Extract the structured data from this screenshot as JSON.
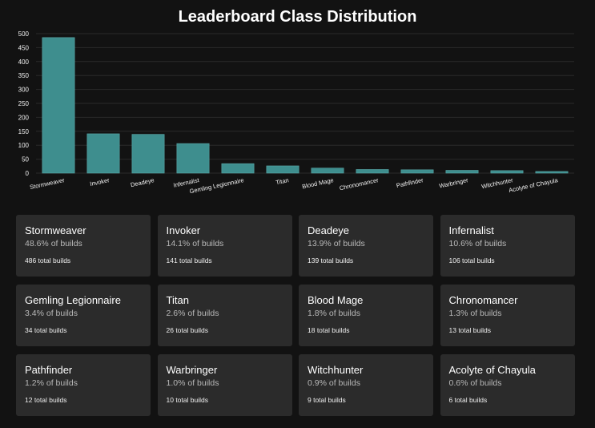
{
  "header": {
    "title": "Leaderboard Class Distribution"
  },
  "colors": {
    "background": "#121212",
    "bar": "#3e8e8e",
    "card": "#2b2b2b"
  },
  "chart_data": {
    "type": "bar",
    "title": "Leaderboard Class Distribution",
    "xlabel": "",
    "ylabel": "",
    "ylim": [
      0,
      500
    ],
    "yticks": [
      0,
      50,
      100,
      150,
      200,
      250,
      300,
      350,
      400,
      450,
      500
    ],
    "grid": true,
    "categories": [
      "Stormweaver",
      "Invoker",
      "Deadeye",
      "Infernalist",
      "Gemling Legionnaire",
      "Titan",
      "Blood Mage",
      "Chronomancer",
      "Pathfinder",
      "Warbringer",
      "Witchhunter",
      "Acolyte of Chayula"
    ],
    "values": [
      486,
      141,
      139,
      106,
      34,
      26,
      18,
      13,
      12,
      10,
      9,
      6
    ]
  },
  "cards": [
    {
      "name": "Stormweaver",
      "pct": "48.6% of builds",
      "total": "486 total builds"
    },
    {
      "name": "Invoker",
      "pct": "14.1% of builds",
      "total": "141 total builds"
    },
    {
      "name": "Deadeye",
      "pct": "13.9% of builds",
      "total": "139 total builds"
    },
    {
      "name": "Infernalist",
      "pct": "10.6% of builds",
      "total": "106 total builds"
    },
    {
      "name": "Gemling Legionnaire",
      "pct": "3.4% of builds",
      "total": "34 total builds"
    },
    {
      "name": "Titan",
      "pct": "2.6% of builds",
      "total": "26 total builds"
    },
    {
      "name": "Blood Mage",
      "pct": "1.8% of builds",
      "total": "18 total builds"
    },
    {
      "name": "Chronomancer",
      "pct": "1.3% of builds",
      "total": "13 total builds"
    },
    {
      "name": "Pathfinder",
      "pct": "1.2% of builds",
      "total": "12 total builds"
    },
    {
      "name": "Warbringer",
      "pct": "1.0% of builds",
      "total": "10 total builds"
    },
    {
      "name": "Witchhunter",
      "pct": "0.9% of builds",
      "total": "9 total builds"
    },
    {
      "name": "Acolyte of Chayula",
      "pct": "0.6% of builds",
      "total": "6 total builds"
    }
  ]
}
